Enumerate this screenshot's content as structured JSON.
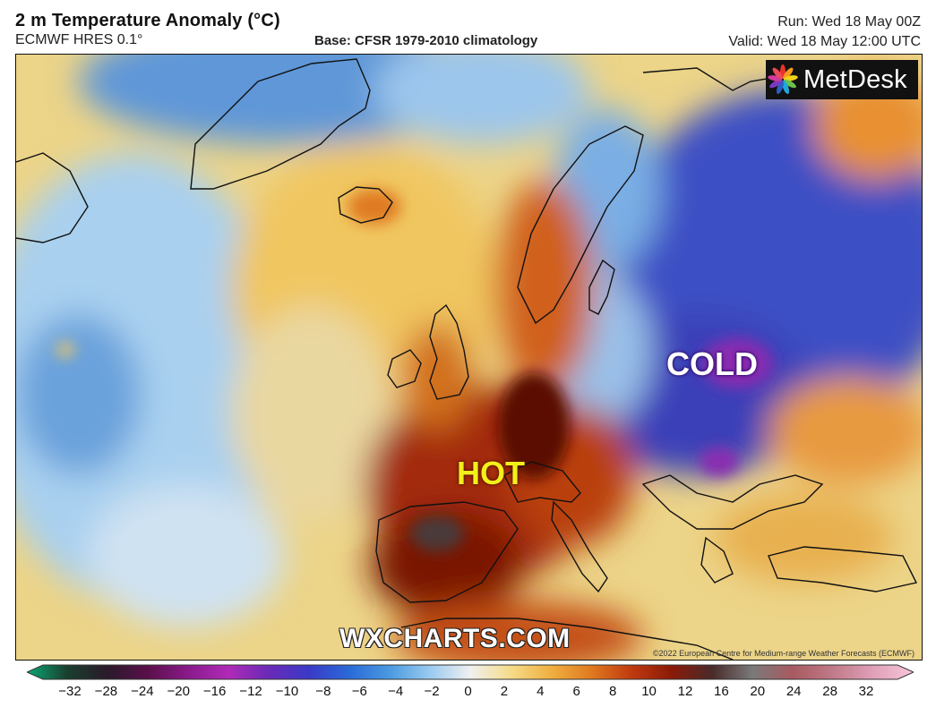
{
  "header": {
    "title": "2 m Temperature Anomaly (°C)",
    "model": "ECMWF HRES 0.1°",
    "base": "Base: CFSR 1979-2010 climatology",
    "run": "Run: Wed 18 May 00Z",
    "valid": "Valid: Wed 18 May 12:00 UTC"
  },
  "logo": {
    "text": "MetDesk",
    "icon": "flower-logo-icon"
  },
  "labels": {
    "hot": "HOT",
    "cold": "COLD",
    "watermark": "WXCHARTS.COM"
  },
  "copyright": "©2022 European Centre for Medium-range Weather Forecasts (ECMWF)",
  "colorbar": {
    "ticks": [
      "−32",
      "−28",
      "−24",
      "−20",
      "−16",
      "−12",
      "−10",
      "−8",
      "−6",
      "−4",
      "−2",
      "0",
      "2",
      "4",
      "6",
      "8",
      "10",
      "12",
      "16",
      "20",
      "24",
      "28",
      "32"
    ],
    "colors": [
      "#0aa877",
      "#1a3f2e",
      "#2a1a2a",
      "#5a0f4a",
      "#8a1a8a",
      "#b02ab8",
      "#6a2ab8",
      "#3a3ac8",
      "#2a6ad8",
      "#4a9ae0",
      "#9acaf0",
      "#f0f0f0",
      "#f5dc8a",
      "#f0b040",
      "#e07a20",
      "#c03a10",
      "#8a1a08",
      "#4a2a2a",
      "#7a7a7a",
      "#a85a60",
      "#c07a88",
      "#e0a0b8",
      "#f7c6da"
    ]
  }
}
